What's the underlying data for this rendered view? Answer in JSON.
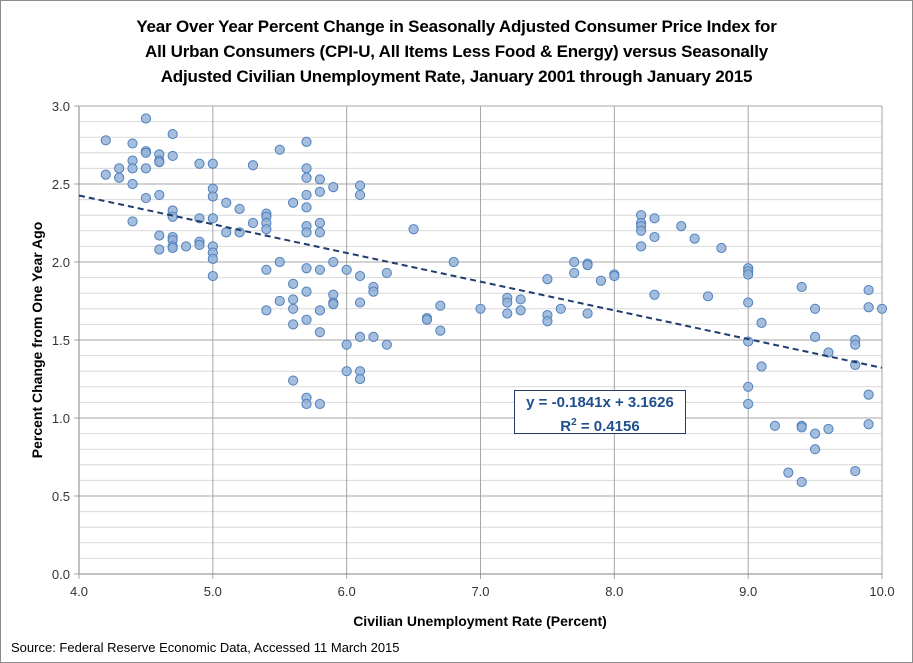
{
  "chart_data": {
    "type": "scatter",
    "title_lines": [
      "Year Over Year Percent Change in Seasonally Adjusted Consumer Price Index for",
      "All Urban Consumers (CPI-U, All Items Less Food & Energy) versus Seasonally",
      "Adjusted Civilian Unemployment Rate, January 2001 through January 2015"
    ],
    "xlabel": "Civilian Unemployment Rate (Percent)",
    "ylabel": "Percent Change from One Year Ago",
    "xlim": [
      4.0,
      10.0
    ],
    "ylim": [
      0.0,
      3.0
    ],
    "xticks": [
      "4.0",
      "5.0",
      "6.0",
      "7.0",
      "8.0",
      "9.0",
      "10.0"
    ],
    "yticks": [
      "0.0",
      "0.5",
      "1.0",
      "1.5",
      "2.0",
      "2.5",
      "3.0"
    ],
    "grid": {
      "x_major": 1.0,
      "y_major": 0.5,
      "y_minor": 0.1
    },
    "marker_color": "#95b3d7",
    "marker_edge": "#4f81bd",
    "trendline": {
      "slope": -0.1841,
      "intercept": 3.1626,
      "color": "#1f3d6e",
      "style": "dashed"
    },
    "equation_label": "y = -0.1841x + 3.1626",
    "r2_label_prefix": "R",
    "r2_label_sup": "2",
    "r2_label_value": " = 0.4156",
    "points": [
      [
        4.2,
        2.78
      ],
      [
        4.2,
        2.56
      ],
      [
        4.3,
        2.6
      ],
      [
        4.3,
        2.54
      ],
      [
        4.4,
        2.76
      ],
      [
        4.4,
        2.65
      ],
      [
        4.4,
        2.6
      ],
      [
        4.4,
        2.5
      ],
      [
        4.4,
        2.26
      ],
      [
        4.5,
        2.92
      ],
      [
        4.5,
        2.71
      ],
      [
        4.5,
        2.7
      ],
      [
        4.5,
        2.6
      ],
      [
        4.5,
        2.41
      ],
      [
        4.6,
        2.69
      ],
      [
        4.6,
        2.65
      ],
      [
        4.6,
        2.64
      ],
      [
        4.6,
        2.43
      ],
      [
        4.6,
        2.17
      ],
      [
        4.6,
        2.08
      ],
      [
        4.7,
        2.82
      ],
      [
        4.7,
        2.68
      ],
      [
        4.7,
        2.33
      ],
      [
        4.7,
        2.29
      ],
      [
        4.7,
        2.16
      ],
      [
        4.7,
        2.14
      ],
      [
        4.7,
        2.1
      ],
      [
        4.7,
        2.09
      ],
      [
        4.8,
        2.1
      ],
      [
        4.9,
        2.63
      ],
      [
        4.9,
        2.28
      ],
      [
        4.9,
        2.13
      ],
      [
        4.9,
        2.11
      ],
      [
        5.0,
        2.63
      ],
      [
        5.0,
        2.47
      ],
      [
        5.0,
        2.42
      ],
      [
        5.0,
        2.28
      ],
      [
        5.0,
        2.1
      ],
      [
        5.0,
        2.06
      ],
      [
        5.0,
        2.02
      ],
      [
        5.0,
        1.91
      ],
      [
        5.1,
        2.38
      ],
      [
        5.1,
        2.19
      ],
      [
        5.2,
        2.34
      ],
      [
        5.2,
        2.19
      ],
      [
        5.3,
        2.62
      ],
      [
        5.3,
        2.25
      ],
      [
        5.4,
        2.31
      ],
      [
        5.4,
        2.29
      ],
      [
        5.4,
        2.25
      ],
      [
        5.4,
        2.21
      ],
      [
        5.4,
        1.95
      ],
      [
        5.4,
        1.69
      ],
      [
        5.5,
        2.72
      ],
      [
        5.5,
        2.0
      ],
      [
        5.5,
        1.75
      ],
      [
        5.6,
        2.38
      ],
      [
        5.6,
        1.86
      ],
      [
        5.6,
        1.76
      ],
      [
        5.6,
        1.7
      ],
      [
        5.6,
        1.6
      ],
      [
        5.6,
        1.24
      ],
      [
        5.7,
        2.77
      ],
      [
        5.7,
        2.6
      ],
      [
        5.7,
        2.54
      ],
      [
        5.7,
        2.43
      ],
      [
        5.7,
        2.35
      ],
      [
        5.7,
        2.23
      ],
      [
        5.7,
        2.19
      ],
      [
        5.7,
        1.96
      ],
      [
        5.7,
        1.81
      ],
      [
        5.7,
        1.63
      ],
      [
        5.7,
        1.13
      ],
      [
        5.7,
        1.09
      ],
      [
        5.8,
        2.53
      ],
      [
        5.8,
        2.45
      ],
      [
        5.8,
        2.25
      ],
      [
        5.8,
        2.19
      ],
      [
        5.8,
        1.95
      ],
      [
        5.8,
        1.69
      ],
      [
        5.8,
        1.55
      ],
      [
        5.8,
        1.09
      ],
      [
        5.9,
        2.48
      ],
      [
        5.9,
        2.0
      ],
      [
        5.9,
        1.79
      ],
      [
        5.9,
        1.74
      ],
      [
        5.9,
        1.73
      ],
      [
        6.0,
        1.95
      ],
      [
        6.0,
        1.47
      ],
      [
        6.0,
        1.3
      ],
      [
        6.1,
        2.49
      ],
      [
        6.1,
        2.43
      ],
      [
        6.1,
        1.91
      ],
      [
        6.1,
        1.74
      ],
      [
        6.1,
        1.52
      ],
      [
        6.1,
        1.3
      ],
      [
        6.1,
        1.25
      ],
      [
        6.2,
        1.84
      ],
      [
        6.2,
        1.81
      ],
      [
        6.2,
        1.52
      ],
      [
        6.3,
        1.93
      ],
      [
        6.3,
        1.47
      ],
      [
        6.5,
        2.21
      ],
      [
        6.6,
        1.64
      ],
      [
        6.6,
        1.63
      ],
      [
        6.7,
        1.72
      ],
      [
        6.7,
        1.56
      ],
      [
        6.8,
        2.0
      ],
      [
        7.0,
        1.7
      ],
      [
        7.2,
        1.77
      ],
      [
        7.2,
        1.74
      ],
      [
        7.2,
        1.67
      ],
      [
        7.3,
        1.76
      ],
      [
        7.3,
        1.69
      ],
      [
        7.5,
        1.89
      ],
      [
        7.5,
        1.66
      ],
      [
        7.5,
        1.62
      ],
      [
        7.6,
        1.7
      ],
      [
        7.7,
        2.0
      ],
      [
        7.7,
        1.93
      ],
      [
        7.8,
        1.99
      ],
      [
        7.8,
        1.98
      ],
      [
        7.8,
        1.67
      ],
      [
        7.9,
        1.88
      ],
      [
        8.0,
        1.92
      ],
      [
        8.0,
        1.91
      ],
      [
        8.2,
        2.3
      ],
      [
        8.2,
        2.25
      ],
      [
        8.2,
        2.23
      ],
      [
        8.2,
        2.2
      ],
      [
        8.2,
        2.1
      ],
      [
        8.3,
        2.28
      ],
      [
        8.3,
        2.16
      ],
      [
        8.3,
        1.79
      ],
      [
        8.5,
        2.23
      ],
      [
        8.6,
        2.15
      ],
      [
        8.7,
        1.78
      ],
      [
        8.8,
        2.09
      ],
      [
        9.0,
        1.96
      ],
      [
        9.0,
        1.94
      ],
      [
        9.0,
        1.92
      ],
      [
        9.0,
        1.74
      ],
      [
        9.0,
        1.49
      ],
      [
        9.0,
        1.2
      ],
      [
        9.0,
        1.09
      ],
      [
        9.1,
        1.61
      ],
      [
        9.1,
        1.33
      ],
      [
        9.2,
        0.95
      ],
      [
        9.3,
        0.65
      ],
      [
        9.4,
        1.84
      ],
      [
        9.4,
        0.95
      ],
      [
        9.4,
        0.94
      ],
      [
        9.4,
        0.59
      ],
      [
        9.5,
        1.7
      ],
      [
        9.5,
        1.52
      ],
      [
        9.5,
        0.9
      ],
      [
        9.5,
        0.8
      ],
      [
        9.6,
        1.42
      ],
      [
        9.6,
        0.93
      ],
      [
        9.8,
        1.5
      ],
      [
        9.8,
        1.47
      ],
      [
        9.8,
        1.34
      ],
      [
        9.8,
        0.66
      ],
      [
        9.9,
        1.82
      ],
      [
        9.9,
        1.71
      ],
      [
        9.9,
        1.15
      ],
      [
        9.9,
        0.96
      ],
      [
        10.0,
        1.7
      ]
    ]
  },
  "source": "Source: Federal Reserve Economic Data, Accessed 11 March 2015"
}
